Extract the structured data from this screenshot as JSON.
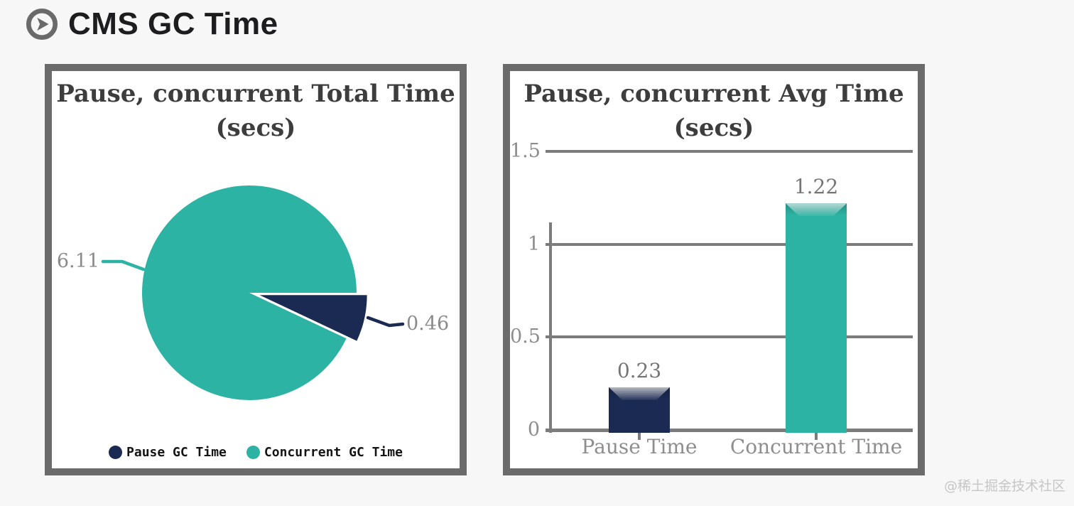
{
  "page": {
    "background": "#f7f7f8",
    "watermark": "@稀土掘金技术社区"
  },
  "header": {
    "title": "CMS GC Time",
    "icon": "play-circle-icon"
  },
  "colors": {
    "navy": "#1a2a52",
    "teal": "#2cb3a3",
    "panel_border": "#6b6b6b",
    "grid": "#7c7c7c",
    "tick_text": "#8d8d8d",
    "value_text": "#757575",
    "data_label_text": "#8a8a8a",
    "title_text": "#3d3d3d",
    "icon_gray": "#6a6a6a"
  },
  "chart_data": [
    {
      "type": "pie",
      "title": "Pause, concurrent Total Time (secs)",
      "title_lines": [
        "Pause, concurrent Total Time",
        "(secs)"
      ],
      "series_labels": [
        "Pause GC Time",
        "Concurrent GC Time"
      ],
      "values": [
        0.46,
        6.11
      ],
      "data_labels": [
        "0.46",
        "6.11"
      ],
      "colors": [
        "#1a2a52",
        "#2cb3a3"
      ],
      "exploded_slice": "Pause GC Time",
      "legend_position": "bottom"
    },
    {
      "type": "bar",
      "title": "Pause, concurrent Avg Time (secs)",
      "title_lines": [
        "Pause, concurrent Avg Time",
        "(secs)"
      ],
      "categories": [
        "Pause Time",
        "Concurrent Time"
      ],
      "values": [
        0.23,
        1.22
      ],
      "value_labels": [
        "0.23",
        "1.22"
      ],
      "colors": [
        "#1a2a52",
        "#2cb3a3"
      ],
      "ylim": [
        0,
        1.5
      ],
      "yticks": [
        0,
        0.5,
        1,
        1.5
      ],
      "ytick_labels": [
        "0",
        "0.5",
        "1",
        "1.5"
      ],
      "grid": true,
      "legend_position": "none"
    }
  ]
}
